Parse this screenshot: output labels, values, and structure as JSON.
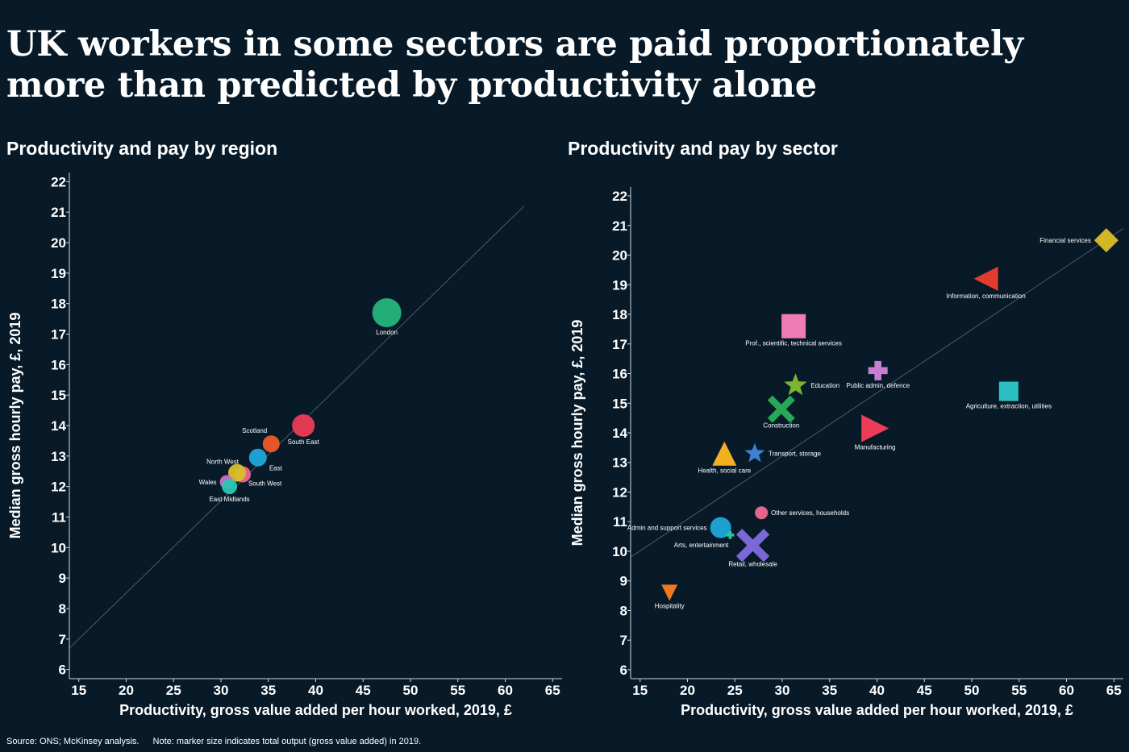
{
  "headline": "UK workers in some sectors are paid proportionately more than predicted by productivity alone",
  "footer": {
    "source": "Source: ONS; McKinsey analysis.",
    "note": "Note: marker size indicates total output (gross value added) in 2019."
  },
  "chart_data": [
    {
      "type": "scatter",
      "title": "Productivity and pay by region",
      "xlabel": "Productivity, gross value added per hour worked, 2019, £",
      "ylabel": "Median gross hourly pay, £, 2019",
      "xlim": [
        14,
        66
      ],
      "ylim": [
        5.7,
        22.3
      ],
      "xticks": [
        15,
        20,
        25,
        30,
        35,
        40,
        45,
        50,
        55,
        60,
        65
      ],
      "yticks": [
        6,
        7,
        8,
        9,
        10,
        11,
        12,
        13,
        14,
        15,
        16,
        17,
        18,
        19,
        20,
        21,
        22
      ],
      "trendline": {
        "x": [
          14,
          62
        ],
        "y": [
          6.7,
          21.2
        ]
      },
      "grid": false,
      "points": [
        {
          "label": "London",
          "x": 47.5,
          "y": 17.7,
          "size": 36,
          "color": "#26b57a",
          "shape": "circle",
          "label_pos": "below"
        },
        {
          "label": "South East",
          "x": 38.7,
          "y": 14.0,
          "size": 28,
          "color": "#ee3b55",
          "shape": "circle",
          "label_pos": "below"
        },
        {
          "label": "Scotland",
          "x": 35.3,
          "y": 13.4,
          "size": 21,
          "color": "#f05a28",
          "shape": "circle",
          "label_pos": "upper-left"
        },
        {
          "label": "East",
          "x": 33.9,
          "y": 12.95,
          "size": 22,
          "color": "#1fa6d8",
          "shape": "circle",
          "label_pos": "lower-right"
        },
        {
          "label": "North West",
          "x": 32.3,
          "y": 12.4,
          "size": 20,
          "color": "#f0648f",
          "shape": "circle",
          "label_pos": "upper-left"
        },
        {
          "label": "South West",
          "x": 31.7,
          "y": 12.45,
          "size": 22,
          "color": "#d7c129",
          "shape": "circle",
          "label_pos": "lower-right"
        },
        {
          "label": "Wales",
          "x": 30.6,
          "y": 12.15,
          "size": 17,
          "color": "#c870c9",
          "shape": "circle",
          "label_pos": "left"
        },
        {
          "label": "East Midlands",
          "x": 30.9,
          "y": 12.0,
          "size": 19,
          "color": "#2dc5b5",
          "shape": "circle",
          "label_pos": "below"
        }
      ]
    },
    {
      "type": "scatter",
      "title": "Productivity and pay by sector",
      "xlabel": "Productivity, gross value added per hour worked, 2019, £",
      "ylabel": "Median gross hourly pay, £, 2019",
      "xlim": [
        14,
        66
      ],
      "ylim": [
        5.7,
        22.3
      ],
      "xticks": [
        15,
        20,
        25,
        30,
        35,
        40,
        45,
        50,
        55,
        60,
        65
      ],
      "yticks": [
        6,
        7,
        8,
        9,
        10,
        11,
        12,
        13,
        14,
        15,
        16,
        17,
        18,
        19,
        20,
        21,
        22
      ],
      "trendline": {
        "x": [
          14,
          66
        ],
        "y": [
          9.8,
          20.9
        ]
      },
      "grid": false,
      "points": [
        {
          "label": "Financial services",
          "x": 64.2,
          "y": 20.5,
          "size": 30,
          "color": "#d2b628",
          "shape": "diamond",
          "label_pos": "left"
        },
        {
          "label": "Information, communication",
          "x": 51.5,
          "y": 19.2,
          "size": 30,
          "color": "#e23d2c",
          "shape": "triangle-left",
          "label_pos": "below"
        },
        {
          "label": "Prof., scientific, technical services",
          "x": 31.2,
          "y": 17.6,
          "size": 30,
          "color": "#f07cb6",
          "shape": "square",
          "label_pos": "below"
        },
        {
          "label": "Public admin, defence",
          "x": 40.1,
          "y": 16.1,
          "size": 24,
          "color": "#c77dd2",
          "shape": "plus",
          "label_pos": "below"
        },
        {
          "label": "Agriculture, extraction, utilities",
          "x": 53.9,
          "y": 15.4,
          "size": 24,
          "color": "#2cc0c2",
          "shape": "square",
          "label_pos": "below"
        },
        {
          "label": "Education",
          "x": 31.4,
          "y": 15.6,
          "size": 30,
          "color": "#7ab530",
          "shape": "star",
          "label_pos": "right"
        },
        {
          "label": "Construction",
          "x": 29.9,
          "y": 14.8,
          "size": 28,
          "color": "#27a854",
          "shape": "x",
          "label_pos": "below"
        },
        {
          "label": "Manufacturing",
          "x": 39.8,
          "y": 14.15,
          "size": 34,
          "color": "#ec3c57",
          "shape": "triangle-right",
          "label_pos": "below"
        },
        {
          "label": "Health, social care",
          "x": 23.9,
          "y": 13.3,
          "size": 30,
          "color": "#f2b01e",
          "shape": "triangle-up",
          "label_pos": "below"
        },
        {
          "label": "Transport, storage",
          "x": 27.1,
          "y": 13.3,
          "size": 26,
          "color": "#3b82d1",
          "shape": "star",
          "label_pos": "right"
        },
        {
          "label": "Other services, households",
          "x": 27.8,
          "y": 11.3,
          "size": 16,
          "color": "#f06a95",
          "shape": "circle",
          "label_pos": "right"
        },
        {
          "label": "Admin and support services",
          "x": 23.5,
          "y": 10.8,
          "size": 26,
          "color": "#1fa6d8",
          "shape": "circle",
          "label_pos": "left"
        },
        {
          "label": "Arts, entertainment",
          "x": 24.5,
          "y": 10.55,
          "size": 10,
          "color": "#2cc3a2",
          "shape": "plus",
          "label_pos": "lower-left"
        },
        {
          "label": "Retail, wholesale",
          "x": 26.9,
          "y": 10.2,
          "size": 34,
          "color": "#7b68d8",
          "shape": "x",
          "label_pos": "below"
        },
        {
          "label": "Hospitality",
          "x": 18.1,
          "y": 8.6,
          "size": 20,
          "color": "#f0781f",
          "shape": "triangle-down",
          "label_pos": "below"
        }
      ]
    }
  ]
}
